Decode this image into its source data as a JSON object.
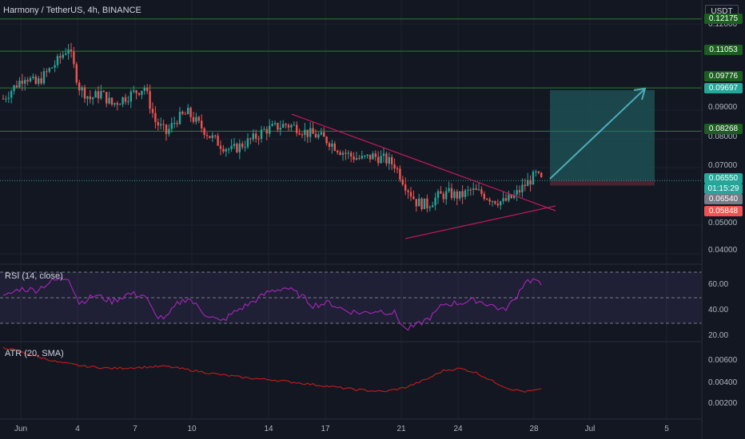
{
  "header": {
    "symbol": "Harmony / TetherUS, 4h, BINANCE",
    "currency": "USDT",
    "rsi_label": "RSI (14, close)",
    "atr_label": "ATR (20, SMA)"
  },
  "colors": {
    "background": "#131722",
    "up": "#26a69a",
    "down": "#ef5350",
    "level_line": "#2e7d32",
    "trend_line": "#c2185b",
    "rsi": "#9c27b0",
    "atr": "#b71c1c",
    "profit_zone": "#1d4f52",
    "loss_zone": "#4a2530",
    "arrow": "#4dabb6"
  },
  "price_labels": {
    "l1": "0.12175",
    "l2": "0.11053",
    "l3": "0.09776",
    "l4": "0.09697",
    "l5": "0.08268",
    "current": "0.06550",
    "countdown": "01:15:29",
    "l6": "0.06540",
    "l7": "0.05848"
  },
  "chart_data": {
    "type": "candlestick",
    "price_axis": {
      "ticks": [
        "0.12000",
        "0.09000",
        "0.08000",
        "0.07000",
        "0.05000",
        "0.04000"
      ],
      "levels": [
        0.12175,
        0.11053,
        0.09776,
        0.08268,
        0.0655
      ]
    },
    "x_ticks": [
      "Jun",
      "4",
      "7",
      "10",
      "14",
      "17",
      "21",
      "24",
      "28",
      "Jul",
      "5"
    ],
    "close_path": [
      [
        0,
        0.094
      ],
      [
        4,
        0.098
      ],
      [
        8,
        0.102
      ],
      [
        12,
        0.099
      ],
      [
        16,
        0.103
      ],
      [
        20,
        0.107
      ],
      [
        24,
        0.112
      ],
      [
        28,
        0.098
      ],
      [
        32,
        0.094
      ],
      [
        36,
        0.096
      ],
      [
        40,
        0.092
      ],
      [
        44,
        0.094
      ],
      [
        48,
        0.096
      ],
      [
        52,
        0.098
      ],
      [
        56,
        0.086
      ],
      [
        60,
        0.082
      ],
      [
        64,
        0.087
      ],
      [
        68,
        0.089
      ],
      [
        72,
        0.085
      ],
      [
        76,
        0.081
      ],
      [
        80,
        0.078
      ],
      [
        84,
        0.076
      ],
      [
        88,
        0.078
      ],
      [
        92,
        0.08
      ],
      [
        96,
        0.083
      ],
      [
        100,
        0.084
      ],
      [
        104,
        0.085
      ],
      [
        108,
        0.084
      ],
      [
        112,
        0.082
      ],
      [
        116,
        0.081
      ],
      [
        120,
        0.079
      ],
      [
        124,
        0.076
      ],
      [
        128,
        0.074
      ],
      [
        132,
        0.073
      ],
      [
        136,
        0.074
      ],
      [
        140,
        0.073
      ],
      [
        144,
        0.071
      ],
      [
        148,
        0.064
      ],
      [
        152,
        0.058
      ],
      [
        156,
        0.057
      ],
      [
        160,
        0.06
      ],
      [
        164,
        0.061
      ],
      [
        168,
        0.06
      ],
      [
        172,
        0.062
      ],
      [
        176,
        0.061
      ],
      [
        180,
        0.059
      ],
      [
        184,
        0.058
      ],
      [
        188,
        0.06
      ],
      [
        192,
        0.064
      ],
      [
        196,
        0.0675
      ],
      [
        198,
        0.0655
      ]
    ],
    "rsi": {
      "axis_ticks": [
        "60.00",
        "40.00",
        "20.00"
      ],
      "bands": [
        70,
        50,
        30
      ],
      "path": [
        [
          0,
          50
        ],
        [
          6,
          57
        ],
        [
          12,
          56
        ],
        [
          18,
          63
        ],
        [
          24,
          66
        ],
        [
          28,
          46
        ],
        [
          34,
          52
        ],
        [
          40,
          47
        ],
        [
          46,
          53
        ],
        [
          52,
          52
        ],
        [
          56,
          36
        ],
        [
          60,
          34
        ],
        [
          64,
          45
        ],
        [
          68,
          50
        ],
        [
          74,
          38
        ],
        [
          80,
          31
        ],
        [
          86,
          40
        ],
        [
          92,
          47
        ],
        [
          98,
          55
        ],
        [
          104,
          58
        ],
        [
          110,
          51
        ],
        [
          114,
          44
        ],
        [
          120,
          46
        ],
        [
          126,
          40
        ],
        [
          132,
          38
        ],
        [
          138,
          40
        ],
        [
          144,
          38
        ],
        [
          148,
          25
        ],
        [
          152,
          28
        ],
        [
          158,
          36
        ],
        [
          162,
          45
        ],
        [
          168,
          46
        ],
        [
          174,
          48
        ],
        [
          180,
          44
        ],
        [
          184,
          40
        ],
        [
          188,
          48
        ],
        [
          192,
          63
        ],
        [
          196,
          64
        ],
        [
          198,
          58
        ]
      ]
    },
    "atr": {
      "axis_ticks": [
        "0.00600",
        "0.00400",
        "0.00200"
      ],
      "path": [
        [
          0,
          0.0072
        ],
        [
          10,
          0.0065
        ],
        [
          20,
          0.0058
        ],
        [
          30,
          0.0054
        ],
        [
          40,
          0.0052
        ],
        [
          50,
          0.0053
        ],
        [
          60,
          0.0054
        ],
        [
          70,
          0.005
        ],
        [
          80,
          0.0046
        ],
        [
          90,
          0.0043
        ],
        [
          100,
          0.0041
        ],
        [
          110,
          0.0038
        ],
        [
          120,
          0.0035
        ],
        [
          130,
          0.0032
        ],
        [
          140,
          0.003
        ],
        [
          148,
          0.0034
        ],
        [
          156,
          0.0042
        ],
        [
          162,
          0.005
        ],
        [
          168,
          0.0052
        ],
        [
          174,
          0.0048
        ],
        [
          180,
          0.004
        ],
        [
          186,
          0.0033
        ],
        [
          192,
          0.003
        ],
        [
          198,
          0.0032
        ]
      ]
    }
  }
}
